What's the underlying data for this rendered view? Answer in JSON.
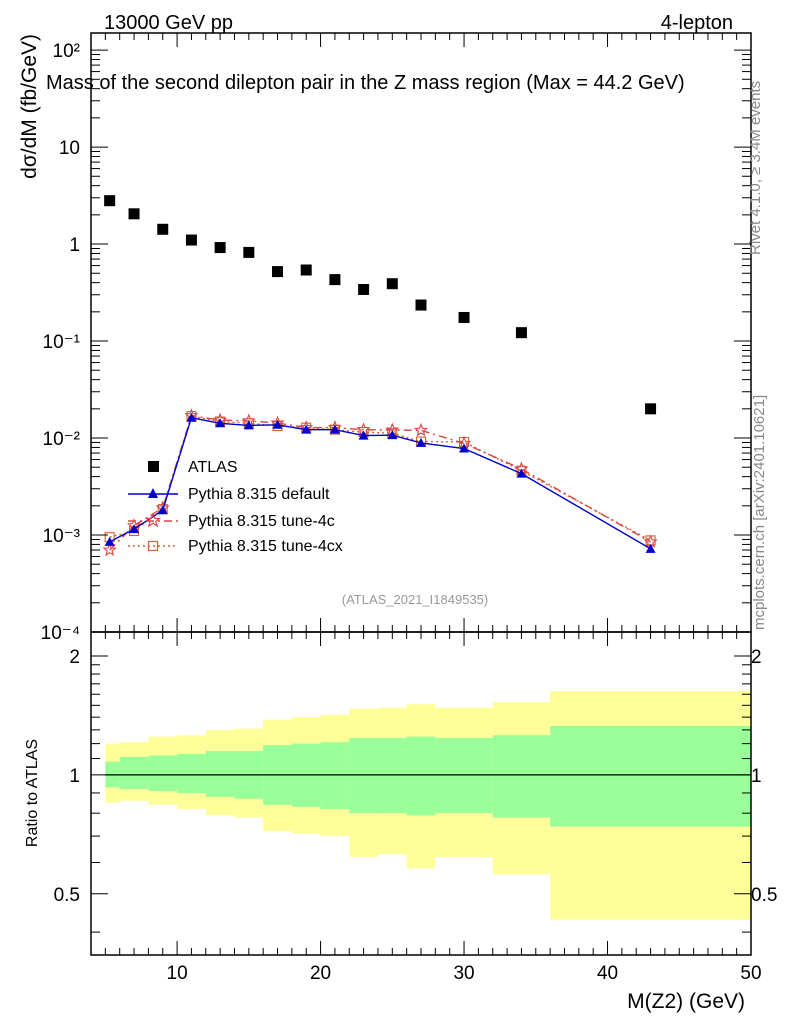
{
  "header": {
    "energy_label": "13000 GeV pp",
    "channel_label": "4-lepton",
    "title": "Mass of the second dilepton pair in the Z mass region (Max = 44.2 GeV)",
    "analysis_id": "(ATLAS_2021_I1849535)",
    "side_rivet": "Rivet 4.1.0, ≥ 3.4M events",
    "side_mcplots": "mcplots.cern.ch [arXiv:2401.10621]"
  },
  "axes": {
    "ylabel_main": "dσ/dM (fb/GeV)",
    "ylabel_ratio": "Ratio to ATLAS",
    "xlabel": "M(Z2) (GeV)"
  },
  "legend": {
    "atlas": "ATLAS",
    "default": "Pythia 8.315 default",
    "tune4c": "Pythia 8.315 tune-4c",
    "tune4cx": "Pythia 8.315 tune-4cx"
  },
  "colors": {
    "data": "#000000",
    "default": "#0000cc",
    "tune4c": "#dd4444",
    "tune4cx": "#cc6633",
    "band_inner": "#99ff99",
    "band_outer": "#ffff99"
  },
  "chart_data": {
    "type": "scatter",
    "xlim": [
      4,
      50
    ],
    "ylim_main": [
      0.0001,
      150
    ],
    "ylog_main": true,
    "ylim_ratio": [
      0.35,
      2.3
    ],
    "ylog_ratio": true,
    "x_ticks": [
      10,
      20,
      30,
      40,
      50
    ],
    "y_ticks_main": [
      {
        "v": 100,
        "label": "10²"
      },
      {
        "v": 10,
        "label": "10"
      },
      {
        "v": 1,
        "label": "1"
      },
      {
        "v": 0.1,
        "label": "10⁻¹"
      },
      {
        "v": 0.01,
        "label": "10⁻²"
      },
      {
        "v": 0.001,
        "label": "10⁻³"
      },
      {
        "v": 0.0001,
        "label": "10⁻⁴"
      }
    ],
    "y_ticks_ratio": [
      {
        "v": 2,
        "label": "2"
      },
      {
        "v": 1,
        "label": "1"
      },
      {
        "v": 0.5,
        "label": "0.5"
      }
    ],
    "bin_edges": [
      5,
      6,
      8,
      10,
      12,
      14,
      16,
      18,
      20,
      22,
      24,
      26,
      28,
      32,
      36,
      50
    ],
    "x": [
      5.3,
      7,
      9,
      11,
      13,
      15,
      17,
      19,
      21,
      23,
      25,
      27,
      30,
      34,
      43
    ],
    "data_values": [
      2.8,
      2.05,
      1.42,
      1.1,
      0.92,
      0.82,
      0.52,
      0.54,
      0.43,
      0.34,
      0.39,
      0.235,
      0.175,
      0.122,
      0.02
    ],
    "series": [
      {
        "name": "Pythia 8.315 default",
        "key": "default",
        "values": [
          0.00085,
          0.00115,
          0.0018,
          0.0162,
          0.0142,
          0.0135,
          0.0137,
          0.0122,
          0.0122,
          0.0106,
          0.0107,
          0.0089,
          0.0078,
          0.0043,
          0.00072
        ]
      },
      {
        "name": "Pythia 8.315 tune-4c",
        "key": "tune4c",
        "values": [
          0.0007,
          0.00125,
          0.0019,
          0.017,
          0.0153,
          0.015,
          0.0143,
          0.0128,
          0.0128,
          0.0122,
          0.0121,
          0.012,
          0.0088,
          0.0048,
          0.00085
        ]
      },
      {
        "name": "Pythia 8.315 tune-4cx",
        "key": "tune4cx",
        "values": [
          0.00095,
          0.0011,
          0.00185,
          0.0168,
          0.0148,
          0.0142,
          0.0133,
          0.0128,
          0.0122,
          0.0115,
          0.0112,
          0.0092,
          0.0091,
          0.0046,
          0.00088
        ]
      }
    ],
    "band_inner": [
      [
        0.93,
        1.08
      ],
      [
        0.92,
        1.11
      ],
      [
        0.91,
        1.12
      ],
      [
        0.9,
        1.13
      ],
      [
        0.88,
        1.15
      ],
      [
        0.87,
        1.15
      ],
      [
        0.84,
        1.19
      ],
      [
        0.83,
        1.2
      ],
      [
        0.82,
        1.21
      ],
      [
        0.8,
        1.24
      ],
      [
        0.8,
        1.24
      ],
      [
        0.79,
        1.25
      ],
      [
        0.8,
        1.24
      ],
      [
        0.78,
        1.26
      ],
      [
        0.74,
        1.33
      ]
    ],
    "band_outer": [
      [
        0.85,
        1.2
      ],
      [
        0.86,
        1.21
      ],
      [
        0.84,
        1.25
      ],
      [
        0.82,
        1.26
      ],
      [
        0.79,
        1.3
      ],
      [
        0.78,
        1.31
      ],
      [
        0.72,
        1.38
      ],
      [
        0.71,
        1.4
      ],
      [
        0.7,
        1.42
      ],
      [
        0.62,
        1.47
      ],
      [
        0.63,
        1.48
      ],
      [
        0.58,
        1.51
      ],
      [
        0.62,
        1.48
      ],
      [
        0.56,
        1.53
      ],
      [
        0.43,
        1.63
      ]
    ]
  }
}
